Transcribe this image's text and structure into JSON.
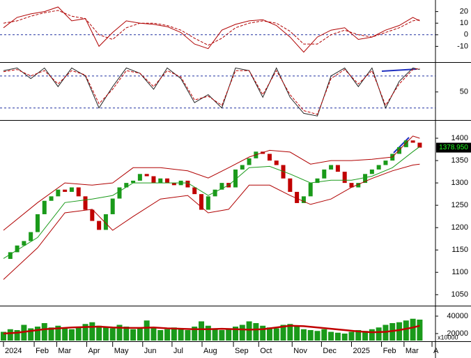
{
  "chart_data": [
    {
      "type": "line",
      "ylim": [
        -23,
        30
      ],
      "yticks": [
        20,
        10,
        0,
        -10
      ],
      "zero_line": 0,
      "x": [
        0,
        2,
        4,
        6,
        8,
        10,
        12,
        14,
        16,
        18,
        20,
        22,
        24,
        26,
        28,
        30,
        32,
        34,
        36,
        38,
        40,
        42,
        44,
        46,
        48,
        50,
        52,
        54,
        56,
        58,
        60,
        61
      ],
      "series": [
        {
          "color": "#b00000",
          "style": "solid",
          "values": [
            6,
            15,
            18,
            20,
            24,
            12,
            14,
            -10,
            2,
            12,
            10,
            9,
            7,
            2,
            -8,
            -12,
            4,
            9,
            12,
            13,
            8,
            -2,
            -15,
            -2,
            4,
            6,
            -4,
            -2,
            4,
            8,
            15,
            12
          ]
        },
        {
          "color": "#b00000",
          "style": "dashed",
          "values": [
            10,
            12,
            16,
            19,
            21,
            16,
            14,
            0,
            -4,
            6,
            10,
            10,
            8,
            4,
            -3,
            -9,
            -3,
            6,
            10,
            12,
            10,
            3,
            -8,
            -8,
            0,
            4,
            0,
            -2,
            2,
            6,
            12,
            13
          ]
        }
      ]
    },
    {
      "type": "line",
      "ylim": [
        0,
        102
      ],
      "yticks": [
        50
      ],
      "levels": [
        80,
        20
      ],
      "x": [
        0,
        2,
        4,
        6,
        8,
        10,
        12,
        14,
        16,
        18,
        20,
        22,
        24,
        26,
        28,
        30,
        32,
        34,
        36,
        38,
        40,
        42,
        44,
        46,
        48,
        50,
        52,
        54,
        56,
        58,
        60,
        61
      ],
      "series": [
        {
          "color": "#222222",
          "style": "solid",
          "values": [
            90,
            95,
            75,
            95,
            60,
            95,
            80,
            20,
            60,
            95,
            85,
            55,
            95,
            75,
            30,
            45,
            20,
            95,
            90,
            40,
            95,
            40,
            10,
            5,
            80,
            95,
            60,
            95,
            20,
            70,
            95,
            92
          ]
        },
        {
          "color": "#c00000",
          "style": "dashed",
          "values": [
            88,
            92,
            80,
            90,
            65,
            90,
            82,
            28,
            55,
            90,
            85,
            60,
            90,
            78,
            35,
            42,
            25,
            90,
            90,
            45,
            90,
            45,
            15,
            8,
            75,
            92,
            65,
            90,
            25,
            65,
            92,
            94
          ]
        }
      ]
    },
    {
      "type": "candle",
      "ylim": [
        1027,
        1436
      ],
      "yticks": [
        1400,
        1350,
        1300,
        1250,
        1200,
        1150,
        1100,
        1050
      ],
      "last_price_label": "1378.950",
      "up_color": "#1a9a1a",
      "down_color": "#c00000",
      "x": [
        0,
        1,
        2,
        3,
        4,
        5,
        6,
        7,
        8,
        9,
        10,
        11,
        12,
        13,
        14,
        15,
        16,
        17,
        18,
        19,
        20,
        21,
        22,
        23,
        24,
        25,
        26,
        27,
        28,
        29,
        30,
        31,
        32,
        33,
        34,
        35,
        36,
        37,
        38,
        39,
        40,
        41,
        42,
        43,
        44,
        45,
        46,
        47,
        48,
        49,
        50,
        51,
        52,
        53,
        54,
        55,
        56,
        57,
        58,
        59,
        60,
        61
      ],
      "values": [
        1130,
        1145,
        1160,
        1170,
        1190,
        1230,
        1260,
        1270,
        1285,
        1280,
        1290,
        1270,
        1240,
        1215,
        1195,
        1230,
        1265,
        1290,
        1300,
        1305,
        1320,
        1315,
        1300,
        1310,
        1300,
        1295,
        1305,
        1290,
        1275,
        1240,
        1270,
        1285,
        1300,
        1290,
        1330,
        1340,
        1355,
        1370,
        1365,
        1350,
        1340,
        1310,
        1280,
        1255,
        1270,
        1300,
        1310,
        1330,
        1340,
        1325,
        1300,
        1290,
        1300,
        1320,
        1330,
        1340,
        1350,
        1365,
        1380,
        1395,
        1390,
        1378.95
      ],
      "series": [
        {
          "color": "#b00000",
          "x": [
            0,
            5,
            9,
            13,
            16,
            19,
            23,
            27,
            30,
            33,
            36,
            39,
            42,
            45,
            48,
            51,
            54,
            57,
            60,
            61
          ],
          "values": [
            1194,
            1256,
            1300,
            1295,
            1300,
            1334,
            1334,
            1327,
            1311,
            1334,
            1358,
            1373,
            1369,
            1342,
            1350,
            1350,
            1353,
            1358,
            1405,
            1400
          ]
        },
        {
          "color": "#1a9a1a",
          "x": [
            0,
            5,
            9,
            13,
            16,
            19,
            23,
            27,
            30,
            33,
            36,
            39,
            42,
            45,
            48,
            51,
            54,
            57,
            60,
            61
          ],
          "values": [
            1131,
            1178,
            1256,
            1264,
            1272,
            1300,
            1300,
            1300,
            1272,
            1295,
            1334,
            1337,
            1320,
            1300,
            1306,
            1306,
            1315,
            1334,
            1370,
            1381
          ]
        },
        {
          "color": "#b00000",
          "x": [
            0,
            5,
            9,
            13,
            16,
            19,
            23,
            27,
            30,
            33,
            36,
            39,
            42,
            45,
            48,
            51,
            54,
            57,
            60,
            61
          ],
          "values": [
            1084,
            1155,
            1233,
            1241,
            1194,
            1225,
            1264,
            1272,
            1233,
            1241,
            1295,
            1295,
            1272,
            1252,
            1264,
            1290,
            1310,
            1327,
            1340,
            1342
          ]
        }
      ]
    },
    {
      "type": "volume",
      "ylim": [
        12000,
        50400
      ],
      "yticks": [
        {
          "value": 40000,
          "label": "40000"
        },
        {
          "value": 20000,
          "label": "20000"
        }
      ],
      "unit_label": "x10000",
      "color": "#1a9a1a",
      "x": [
        0,
        1,
        2,
        3,
        4,
        5,
        6,
        7,
        8,
        9,
        10,
        11,
        12,
        13,
        14,
        15,
        16,
        17,
        18,
        19,
        20,
        21,
        22,
        23,
        24,
        25,
        26,
        27,
        28,
        29,
        30,
        31,
        32,
        33,
        34,
        35,
        36,
        37,
        38,
        39,
        40,
        41,
        42,
        43,
        44,
        45,
        46,
        47,
        48,
        49,
        50,
        51,
        52,
        53,
        54,
        55,
        56,
        57,
        58,
        59,
        60,
        61
      ],
      "values": [
        22000,
        25000,
        24000,
        30000,
        26000,
        28000,
        32000,
        27000,
        29000,
        26000,
        25000,
        28000,
        31000,
        33000,
        29000,
        27000,
        26000,
        30000,
        28000,
        25000,
        27000,
        35000,
        26000,
        24000,
        25000,
        27000,
        26000,
        24000,
        28000,
        34000,
        29000,
        26000,
        24000,
        25000,
        28000,
        30000,
        34000,
        32000,
        29000,
        27000,
        26000,
        30000,
        31000,
        28000,
        25000,
        24000,
        23000,
        25000,
        22000,
        21000,
        20000,
        22000,
        24000,
        23000,
        25000,
        27000,
        30000,
        32000,
        33000,
        35000,
        37000,
        36000
      ],
      "series": [
        {
          "color": "#c00000",
          "x": [
            0,
            2,
            4,
            6,
            8,
            10,
            12,
            14,
            16,
            18,
            20,
            22,
            24,
            26,
            28,
            30,
            32,
            34,
            36,
            38,
            40,
            42,
            44,
            46,
            48,
            50,
            52,
            54,
            56,
            58,
            60,
            61
          ],
          "values": [
            20000,
            21000,
            23000,
            25000,
            26000,
            27000,
            27500,
            28000,
            27000,
            26500,
            26500,
            27000,
            26000,
            25500,
            25000,
            25000,
            25500,
            25000,
            24500,
            25000,
            27000,
            29000,
            28500,
            27000,
            25500,
            24000,
            22500,
            21500,
            22000,
            24000,
            27000,
            29000
          ]
        }
      ],
      "xlim": [
        0,
        63
      ],
      "xticks": [
        {
          "value": 0,
          "label": "2024"
        },
        {
          "value": 4.5,
          "label": "Feb"
        },
        {
          "value": 7.8,
          "label": "Mar"
        },
        {
          "value": 12.2,
          "label": "Apr"
        },
        {
          "value": 16,
          "label": "May"
        },
        {
          "value": 20.4,
          "label": "Jun"
        },
        {
          "value": 24.7,
          "label": "Jul"
        },
        {
          "value": 29.1,
          "label": "Aug"
        },
        {
          "value": 33.7,
          "label": "Sep"
        },
        {
          "value": 37.4,
          "label": "Oct"
        },
        {
          "value": 42.3,
          "label": "Nov"
        },
        {
          "value": 46.6,
          "label": "Dec"
        },
        {
          "value": 51,
          "label": "2025"
        },
        {
          "value": 55.4,
          "label": "Feb"
        },
        {
          "value": 58.7,
          "label": "Mar"
        },
        {
          "value": 62.8,
          "label": "A"
        }
      ]
    }
  ]
}
